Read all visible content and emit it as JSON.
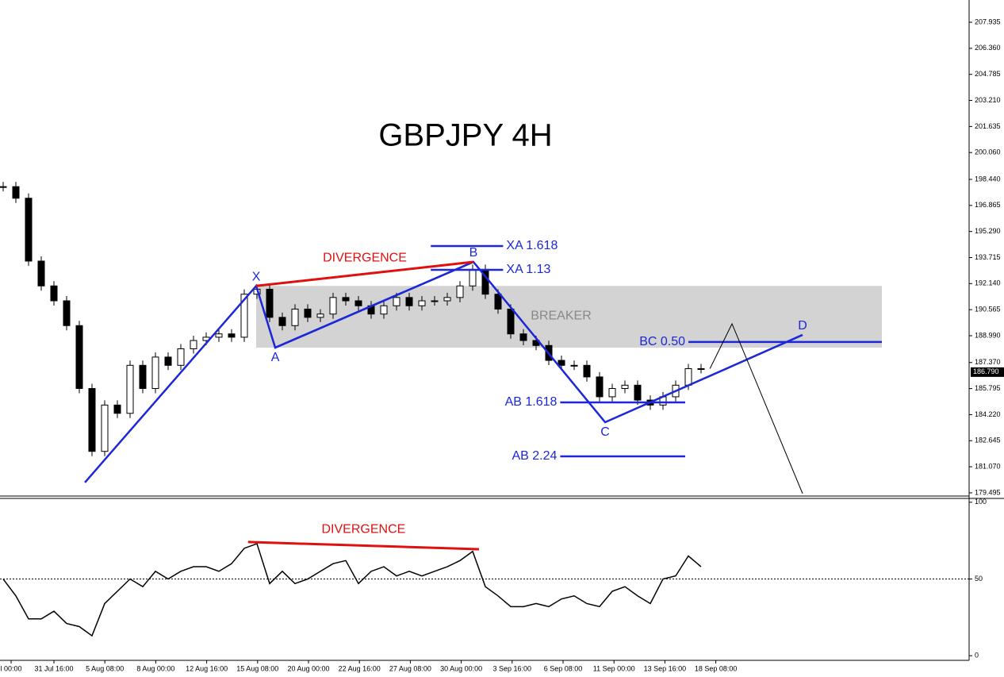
{
  "chart_data": [
    {
      "type": "candlestick",
      "title": "GBPJPY 4H",
      "closes": [
        198.0,
        197.3,
        193.5,
        192.0,
        191.1,
        189.6,
        185.8,
        182.0,
        184.8,
        184.3,
        187.2,
        185.8,
        187.7,
        187.2,
        188.2,
        188.7,
        188.9,
        189.1,
        188.9,
        191.5,
        191.8,
        190.1,
        189.6,
        190.6,
        190.1,
        190.3,
        191.3,
        191.1,
        190.8,
        190.3,
        190.8,
        191.3,
        190.8,
        191.1,
        191.1,
        191.3,
        192.0,
        193.0,
        191.5,
        190.6,
        189.1,
        188.7,
        188.4,
        187.5,
        187.2,
        187.2,
        186.5,
        185.3,
        185.8,
        186.0,
        185.1,
        184.8,
        185.3,
        186.0,
        187.0,
        187.0
      ],
      "ylim": [
        179.3,
        209.28
      ],
      "yticks": [
        207.935,
        {
          "value": 206.36,
          "label": "206.360"
        },
        204.785,
        {
          "value": 203.21,
          "label": "203.210"
        },
        201.635,
        {
          "value": 200.06,
          "label": "200.060"
        },
        {
          "value": 198.44,
          "label": "198.440"
        },
        196.865,
        {
          "value": 195.29,
          "label": "195.290"
        },
        193.715,
        {
          "value": 192.14,
          "label": "192.140"
        },
        190.565,
        {
          "value": 188.99,
          "label": "188.990"
        },
        {
          "value": 187.37,
          "label": "187.370"
        },
        185.795,
        {
          "value": 184.22,
          "label": "184.220"
        },
        182.645,
        {
          "value": 181.07,
          "label": "181.070"
        },
        179.495
      ],
      "x_labels": [
        "l 00:00",
        "31 Jul 16:00",
        "5 Aug 08:00",
        "8 Aug 00:00",
        "12 Aug 16:00",
        "15 Aug 08:00",
        "20 Aug 00:00",
        "22 Aug 16:00",
        "27 Aug 08:00",
        "30 Aug 00:00",
        "3 Sep 16:00",
        "6 Sep 08:00",
        "11 Sep 00:00",
        "13 Sep 16:00",
        "18 Sep 08:00"
      ],
      "last_price": 186.79,
      "last_price_label": "186.790",
      "pattern": {
        "color": "#1c27d8",
        "points": [
          {
            "x": 6.44,
            "y": 180.12,
            "label": null
          },
          {
            "x": 19.94,
            "y": 192.0,
            "label": "X"
          },
          {
            "x": 21.44,
            "y": 188.27,
            "label": "A"
          },
          {
            "x": 37.06,
            "y": 193.45,
            "label": "B"
          },
          {
            "x": 47.44,
            "y": 183.76,
            "label": "C"
          },
          {
            "x": 63.0,
            "y": 189.04,
            "label": "D"
          }
        ]
      },
      "levels": [
        {
          "label": "XA 1.618",
          "y": 194.41,
          "x": [
            33.7,
            39.4
          ],
          "label_side": "right"
        },
        {
          "label": "XA 1.13",
          "y": 192.97,
          "x": [
            33.7,
            39.4
          ],
          "label_side": "right"
        },
        {
          "label": "BC 0.50",
          "y": 188.61,
          "x": [
            54.0,
            69.25
          ],
          "label_side": "left"
        },
        {
          "label": "AB 1.618",
          "y": 184.96,
          "x": [
            43.9,
            53.75
          ],
          "label_side": "left"
        },
        {
          "label": "AB 2.24",
          "y": 181.7,
          "x": [
            43.9,
            53.75
          ],
          "label_side": "left"
        }
      ],
      "zone": {
        "label": "BREAKER",
        "y": [
          188.27,
          192.0
        ],
        "x": [
          19.94,
          69.25
        ],
        "color": "#d3d3d3"
      },
      "divergence": {
        "label": "DIVERGENCE",
        "color": "#e01010",
        "x": [
          19.94,
          37.06
        ],
        "y": [
          192.0,
          193.45
        ]
      },
      "projection": {
        "x": [
          55.7,
          57.44,
          63.0
        ],
        "y": [
          187.0,
          189.71,
          179.45
        ],
        "color": "#000000"
      }
    },
    {
      "type": "line",
      "values": [
        50,
        39,
        24,
        24,
        29,
        21,
        19,
        13,
        34,
        42,
        50,
        45,
        55,
        50,
        55,
        58,
        58,
        55,
        60,
        70,
        73,
        47,
        55,
        47,
        50,
        55,
        60,
        62,
        47,
        55,
        58,
        52,
        55,
        52,
        55,
        58,
        62,
        68,
        45,
        39,
        32,
        32,
        34,
        32,
        37,
        39,
        34,
        32,
        42,
        45,
        39,
        34,
        50,
        52,
        65,
        58
      ],
      "color": "#000000",
      "ylim": [
        -3,
        102.5
      ],
      "yticks": [
        0,
        50,
        100
      ],
      "level": 50,
      "divergence": {
        "label": "DIVERGENCE",
        "color": "#e01010",
        "x": [
          19.3,
          37.5
        ],
        "y": [
          74.1,
          69.4
        ]
      }
    }
  ]
}
